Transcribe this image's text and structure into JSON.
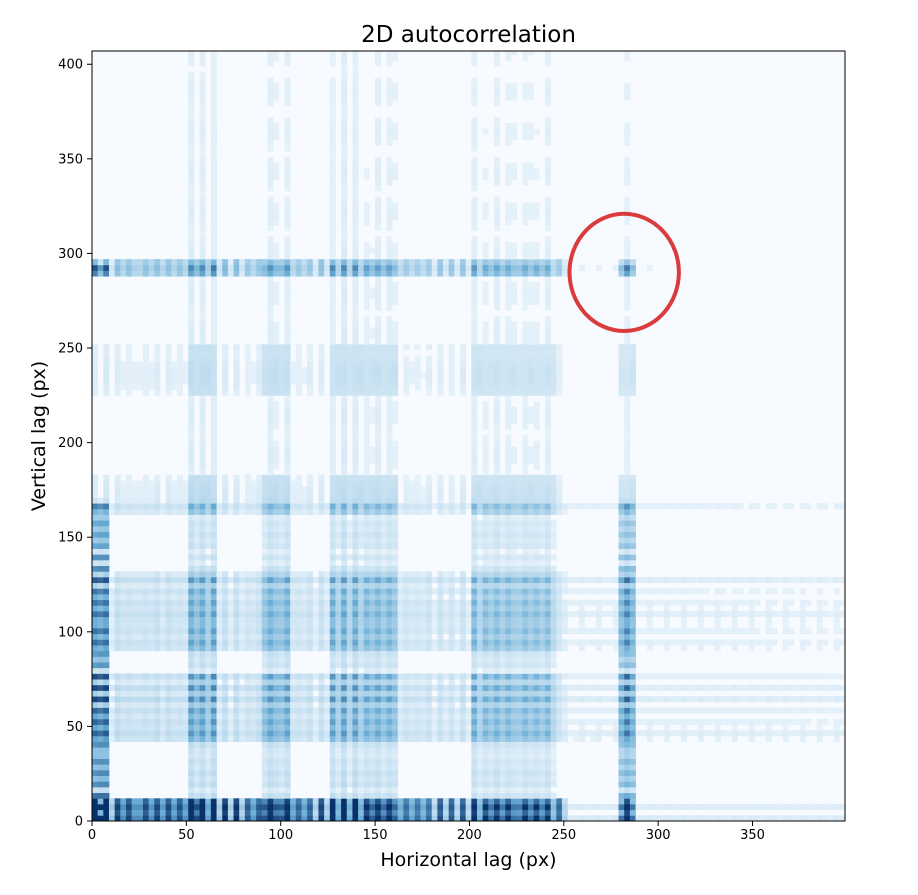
{
  "chart_data": {
    "type": "heatmap",
    "title": "2D autocorrelation",
    "xlabel": "Horizontal lag (px)",
    "ylabel": "Vertical lag (px)",
    "xlim": [
      0,
      399
    ],
    "ylim": [
      0,
      407
    ],
    "x_ticks": [
      0,
      50,
      100,
      150,
      200,
      250,
      300,
      350
    ],
    "y_ticks": [
      0,
      50,
      100,
      150,
      200,
      250,
      300,
      350,
      400
    ],
    "colormap": "Blues",
    "colors": {
      "low": "#f7fbff",
      "mid": "#6baed6",
      "high": "#08306b",
      "annotation": "#d62728"
    },
    "grid": false,
    "features": {
      "peak_columns_x": [
        0,
        6,
        13,
        19,
        26,
        32,
        38,
        44,
        50,
        56,
        63,
        69,
        75,
        82,
        88,
        94,
        101,
        107,
        113,
        120,
        126,
        132,
        138,
        145,
        151,
        157,
        164,
        170,
        176,
        183,
        189,
        195,
        201,
        208,
        214,
        220,
        227,
        233,
        239,
        246,
        282
      ],
      "bright_lines_y": [
        0,
        6,
        12,
        19,
        25,
        31,
        38,
        44,
        50,
        56,
        63,
        69,
        75,
        82,
        88,
        94,
        100,
        107,
        113,
        119,
        126,
        132,
        138,
        145,
        151,
        157,
        164,
        290
      ],
      "band_columns_x": [
        [
          50,
          65
        ],
        [
          88,
          104
        ],
        [
          126,
          160
        ],
        [
          200,
          245
        ],
        [
          277,
          287
        ]
      ],
      "band_rows_y": [
        [
          0,
          10
        ],
        [
          40,
          75
        ],
        [
          90,
          130
        ],
        [
          160,
          180
        ],
        [
          225,
          250
        ],
        [
          286,
          294
        ]
      ]
    },
    "annotations": [
      {
        "type": "ellipse",
        "center": [
          282,
          290
        ],
        "radius_x": 29,
        "radius_y": 31,
        "color": "#d62728"
      }
    ]
  }
}
